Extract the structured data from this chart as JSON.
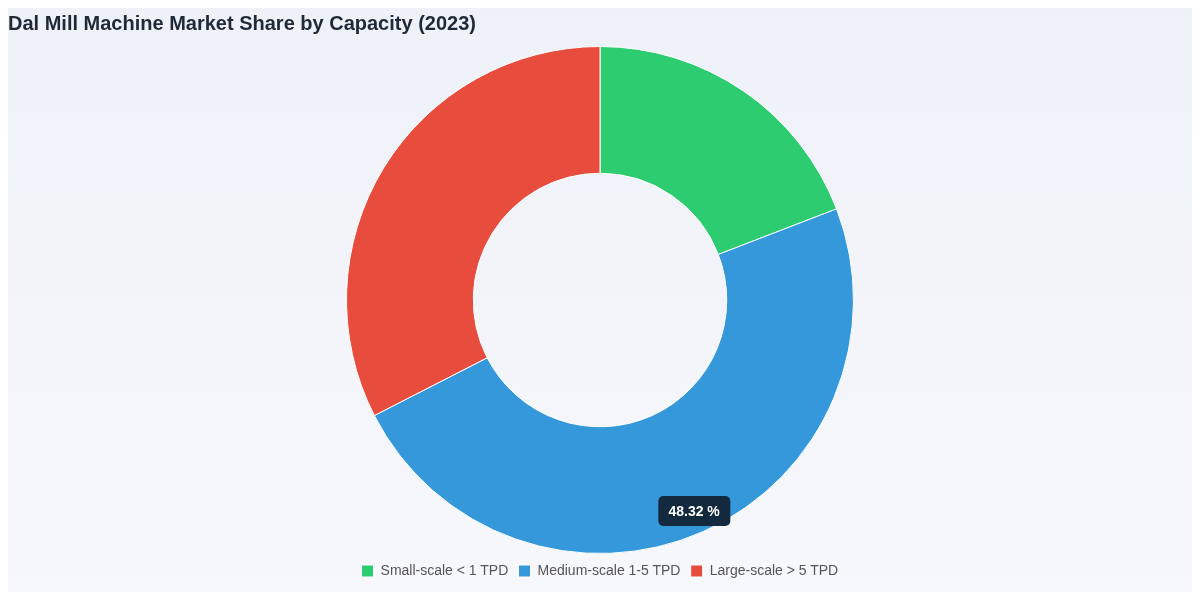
{
  "chart_data": {
    "type": "donut",
    "title": "Dal Mill Machine Market Share by Capacity (2023)",
    "categories": [
      "Small-scale < 1 TPD",
      "Medium-scale 1-5 TPD",
      "Large-scale > 5 TPD"
    ],
    "values": [
      19.15,
      48.32,
      32.53
    ],
    "colors": [
      "#2ecc71",
      "#3498db",
      "#e74c3c"
    ],
    "value_labels": [
      null,
      "48.32 %",
      null
    ],
    "legend": "bottom"
  }
}
